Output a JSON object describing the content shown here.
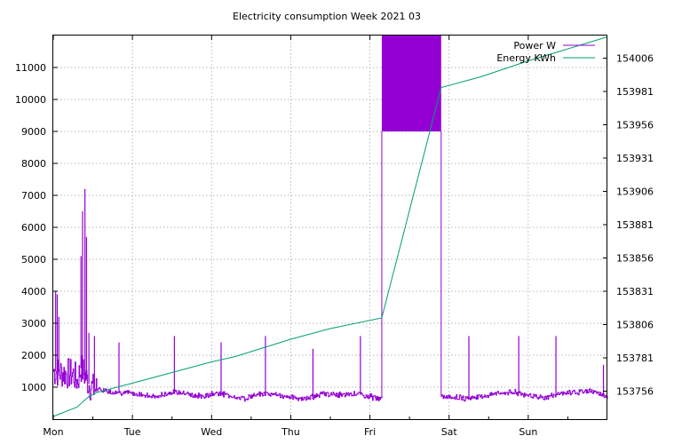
{
  "chart_data": {
    "type": "line",
    "title": "Electricity consumption Week 2021 03",
    "x_categories": [
      "Mon",
      "Tue",
      "Wed",
      "Thu",
      "Fri",
      "Sat",
      "Sun"
    ],
    "x_range_days": [
      0,
      7
    ],
    "y_left_ticks": [
      1000,
      2000,
      3000,
      4000,
      5000,
      6000,
      7000,
      8000,
      9000,
      10000,
      11000
    ],
    "y_left_range": [
      0,
      12000
    ],
    "y_right_ticks": [
      153756,
      153781,
      153806,
      153831,
      153856,
      153881,
      153906,
      153931,
      153956,
      153981,
      154006
    ],
    "y_right_range": [
      153735,
      154023
    ],
    "grid": true,
    "legend_position": "top-right",
    "series": [
      {
        "name": "Power W",
        "axis": "left",
        "color": "#9400d3",
        "baseline": [
          [
            0,
            1500
          ],
          [
            0.25,
            1400
          ],
          [
            0.3,
            1200
          ],
          [
            0.35,
            1600
          ],
          [
            0.45,
            1100
          ],
          [
            0.5,
            950
          ],
          [
            0.6,
            900
          ],
          [
            0.75,
            850
          ],
          [
            1.0,
            800
          ],
          [
            1.1,
            780
          ],
          [
            1.3,
            700
          ],
          [
            1.5,
            850
          ],
          [
            1.7,
            800
          ],
          [
            1.9,
            700
          ],
          [
            2.0,
            800
          ],
          [
            2.2,
            750
          ],
          [
            2.4,
            650
          ],
          [
            2.6,
            800
          ],
          [
            2.8,
            750
          ],
          [
            3.0,
            700
          ],
          [
            3.2,
            650
          ],
          [
            3.4,
            800
          ],
          [
            3.6,
            750
          ],
          [
            3.8,
            800
          ],
          [
            4.0,
            700
          ],
          [
            4.15,
            650
          ],
          [
            4.95,
            700
          ],
          [
            5.2,
            650
          ],
          [
            5.4,
            700
          ],
          [
            5.6,
            800
          ],
          [
            5.8,
            850
          ],
          [
            6.0,
            750
          ],
          [
            6.2,
            650
          ],
          [
            6.4,
            800
          ],
          [
            6.6,
            850
          ],
          [
            6.8,
            900
          ],
          [
            6.95,
            750
          ],
          [
            7.0,
            700
          ]
        ],
        "spikes": [
          [
            0.03,
            4000
          ],
          [
            0.05,
            3900
          ],
          [
            0.07,
            3200
          ],
          [
            0.35,
            5100
          ],
          [
            0.37,
            6500
          ],
          [
            0.4,
            7200
          ],
          [
            0.42,
            5700
          ],
          [
            0.45,
            2700
          ],
          [
            0.52,
            2600
          ],
          [
            0.83,
            2400
          ],
          [
            1.53,
            2600
          ],
          [
            2.12,
            2400
          ],
          [
            2.68,
            2600
          ],
          [
            3.28,
            2200
          ],
          [
            3.88,
            2600
          ],
          [
            5.25,
            2600
          ],
          [
            5.88,
            2600
          ],
          [
            6.35,
            2600
          ],
          [
            6.95,
            1700
          ]
        ],
        "high_band": {
          "x_start": 4.15,
          "x_end": 4.9,
          "y_from": 9000,
          "y_to": 12000
        },
        "high_band_color": "#9400d3"
      },
      {
        "name": "Energy KWh",
        "axis": "right",
        "color": "#009e73",
        "points": [
          [
            0,
            153737
          ],
          [
            0.3,
            153744
          ],
          [
            0.45,
            153752
          ],
          [
            0.55,
            153755
          ],
          [
            1.0,
            153762
          ],
          [
            2.0,
            153778
          ],
          [
            2.3,
            153782
          ],
          [
            3.0,
            153795
          ],
          [
            3.5,
            153803
          ],
          [
            4.15,
            153811
          ],
          [
            4.9,
            153984
          ],
          [
            5.4,
            153992
          ],
          [
            6.0,
            154004
          ],
          [
            7.0,
            154022
          ]
        ]
      }
    ]
  }
}
